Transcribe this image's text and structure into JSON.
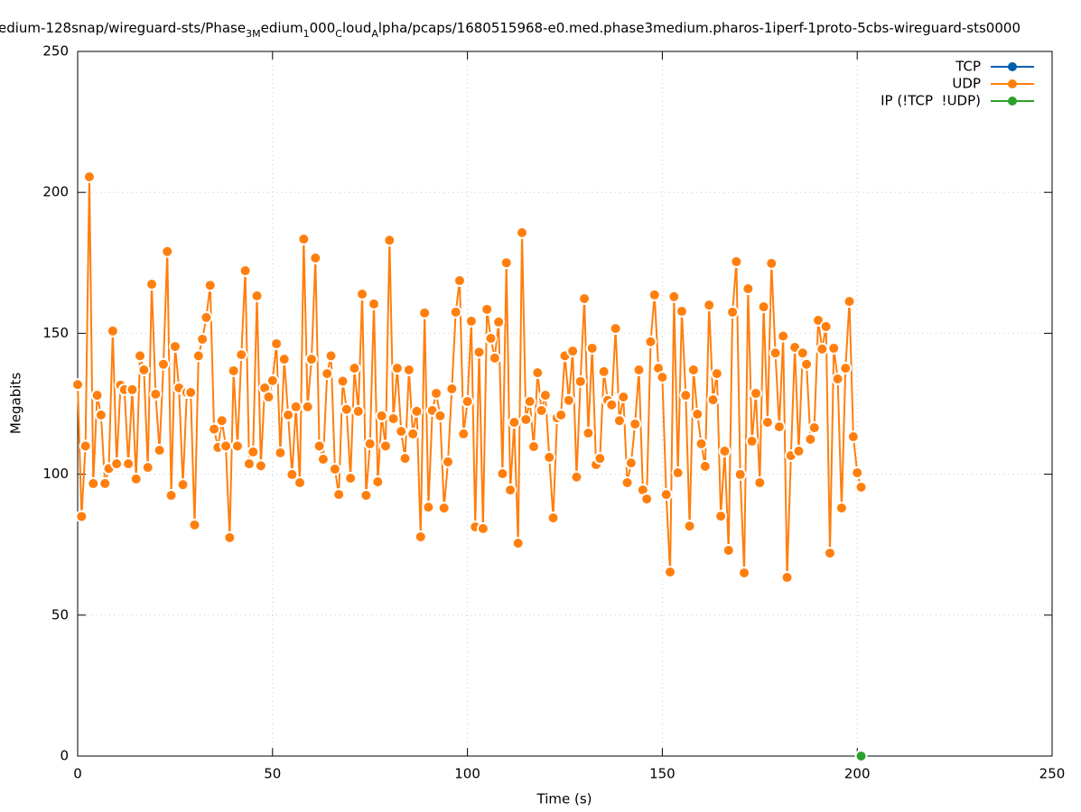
{
  "chart_data": {
    "type": "line",
    "title_parts": [
      {
        "text": "edium-128snap/wireguard-sts/Phase"
      },
      {
        "text": "3M",
        "sub": true
      },
      {
        "text": "edium"
      },
      {
        "text": "1",
        "sub": true
      },
      {
        "text": "000"
      },
      {
        "text": "C",
        "sub": true
      },
      {
        "text": "loud"
      },
      {
        "text": "A",
        "sub": true
      },
      {
        "text": "lpha/pcaps/1680515968-e0.med.phase3medium.pharos-1iperf-1proto-5cbs-wireguard-sts0000"
      }
    ],
    "x_label": "Time (s)",
    "y_label": "Megabits",
    "xlim": [
      0,
      250
    ],
    "ylim": [
      0,
      250
    ],
    "xticks": [
      0,
      50,
      100,
      150,
      200,
      250
    ],
    "yticks": [
      0,
      50,
      100,
      150,
      200,
      250
    ],
    "grid": true,
    "legend": "top-right",
    "series": [
      {
        "name": "TCP",
        "color": "#0060ad",
        "x": [],
        "values": []
      },
      {
        "name": "UDP",
        "color": "#ff7f0e",
        "x": [
          0,
          1,
          2,
          3,
          4,
          5,
          6,
          7,
          8,
          9,
          10,
          11,
          12,
          13,
          14,
          15,
          16,
          17,
          18,
          19,
          20,
          21,
          22,
          23,
          24,
          25,
          26,
          27,
          28,
          29,
          30,
          31,
          32,
          33,
          34,
          35,
          36,
          37,
          38,
          39,
          40,
          41,
          42,
          43,
          44,
          45,
          46,
          47,
          48,
          49,
          50,
          51,
          52,
          53,
          54,
          55,
          56,
          57,
          58,
          59,
          60,
          61,
          62,
          63,
          64,
          65,
          66,
          67,
          68,
          69,
          70,
          71,
          72,
          73,
          74,
          75,
          76,
          77,
          78,
          79,
          80,
          81,
          82,
          83,
          84,
          85,
          86,
          87,
          88,
          89,
          90,
          91,
          92,
          93,
          94,
          95,
          96,
          97,
          98,
          99,
          100,
          101,
          102,
          103,
          104,
          105,
          106,
          107,
          108,
          109,
          110,
          111,
          112,
          113,
          114,
          115,
          116,
          117,
          118,
          119,
          120,
          121,
          122,
          123,
          124,
          125,
          126,
          127,
          128,
          129,
          130,
          131,
          132,
          133,
          134,
          135,
          136,
          137,
          138,
          139,
          140,
          141,
          142,
          143,
          144,
          145,
          146,
          147,
          148,
          149,
          150,
          151,
          152,
          153,
          154,
          155,
          156,
          157,
          158,
          159,
          160,
          161,
          162,
          163,
          164,
          165,
          166,
          167,
          168,
          169,
          170,
          171,
          172,
          173,
          174,
          175,
          176,
          177,
          178,
          179,
          180,
          181,
          182,
          183,
          184,
          185,
          186,
          187,
          188,
          189,
          190,
          191,
          192,
          193,
          194,
          195,
          196,
          197,
          198,
          199,
          200,
          201
        ],
        "values": [
          131.8,
          85,
          110,
          205.5,
          96.7,
          128,
          121,
          96.7,
          102,
          150.8,
          103.7,
          131.6,
          130,
          103.7,
          130,
          98.3,
          142,
          137,
          102.4,
          167.4,
          128.4,
          108.5,
          139,
          179,
          92.5,
          145.3,
          130.6,
          96.3,
          129,
          129,
          82,
          142,
          147.9,
          155.6,
          167,
          116,
          109.5,
          119,
          110,
          77.5,
          136.7,
          110,
          142.4,
          172.2,
          103.7,
          107.9,
          163.3,
          103,
          130.6,
          127.4,
          133.2,
          146.3,
          107.6,
          140.8,
          121,
          99.9,
          123.9,
          97,
          183.4,
          123.9,
          140.8,
          176.7,
          110,
          105.3,
          135.7,
          142,
          101.8,
          92.8,
          133,
          123,
          98.6,
          137.6,
          122.3,
          163.9,
          92.5,
          110.8,
          160.4,
          97.3,
          120.7,
          110,
          183,
          119.7,
          137.6,
          115.2,
          105.6,
          137,
          114.3,
          122.3,
          77.8,
          157.2,
          88.3,
          122.6,
          128.7,
          120.7,
          88,
          104.4,
          130.3,
          157.5,
          168.7,
          114.3,
          125.8,
          154.3,
          81.3,
          143.3,
          80.7,
          158.5,
          148.2,
          141.2,
          154,
          100.2,
          175,
          94.4,
          118.4,
          75.5,
          185.7,
          119.4,
          125.8,
          109.8,
          136,
          122.6,
          128,
          106,
          84.5,
          120,
          121,
          142,
          126.2,
          143.7,
          99,
          132.9,
          162.3,
          114.6,
          144.7,
          103.4,
          105.6,
          136.4,
          126.2,
          124.6,
          151.7,
          119,
          127.4,
          97,
          104,
          117.8,
          137,
          94.4,
          91.2,
          147,
          163.6,
          137.6,
          134.4,
          92.8,
          65.3,
          163,
          100.5,
          157.8,
          128,
          81.6,
          137,
          121.3,
          110.8,
          102.8,
          160,
          126.4,
          135.7,
          85.1,
          108.2,
          73,
          157.5,
          175.4,
          99.9,
          65,
          165.8,
          111.7,
          128.7,
          97,
          159.4,
          118.4,
          174.8,
          143,
          116.8,
          149,
          63.4,
          106.6,
          145,
          108.2,
          143,
          139,
          112.4,
          116.5,
          154.6,
          144.4,
          152.4,
          72,
          144.7,
          133.8,
          88,
          137.6,
          161.3,
          113.3,
          100.5,
          95.4
        ]
      },
      {
        "name": "IP (!TCP  !UDP)",
        "color": "#2ca02c",
        "x": [
          201
        ],
        "values": [
          0
        ]
      }
    ]
  }
}
